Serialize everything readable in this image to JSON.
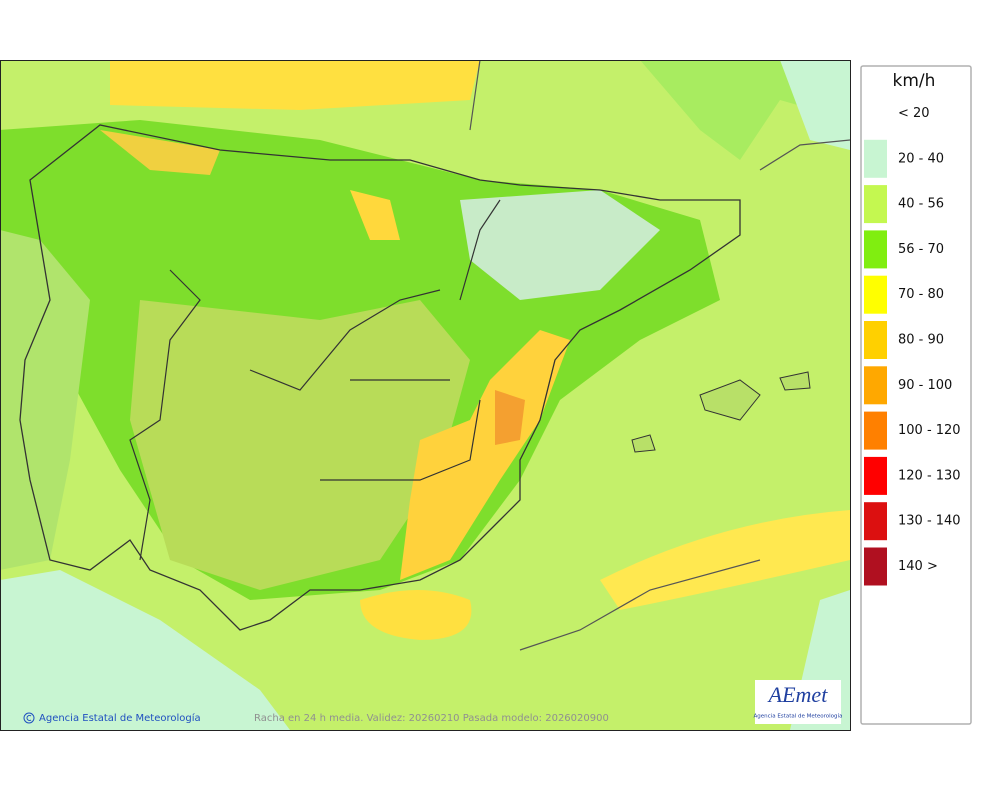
{
  "map": {
    "footer_credit": "Agencia Estatal de Meteorología",
    "footer_caption": "Racha en 24 h media. Validez: 20260210 Pasada modelo: 2026020900",
    "logo": {
      "text": "AEmet",
      "subtitle": "Agencia Estatal de Meteorología"
    }
  },
  "legend": {
    "title": "km/h",
    "items": [
      {
        "label": "< 20",
        "color": "#ffffff"
      },
      {
        "label": "20 - 40",
        "color": "#c8f5d2"
      },
      {
        "label": "40 - 56",
        "color": "#c4f850"
      },
      {
        "label": "56 - 70",
        "color": "#80ee10"
      },
      {
        "label": "70 - 80",
        "color": "#ffff00"
      },
      {
        "label": "80 - 90",
        "color": "#ffd000"
      },
      {
        "label": "90 - 100",
        "color": "#ffa800"
      },
      {
        "label": "100 - 120",
        "color": "#ff8000"
      },
      {
        "label": "120 - 130",
        "color": "#ff0000"
      },
      {
        "label": "130 - 140",
        "color": "#dc1010"
      },
      {
        "label": "140 >",
        "color": "#b01020"
      }
    ]
  }
}
